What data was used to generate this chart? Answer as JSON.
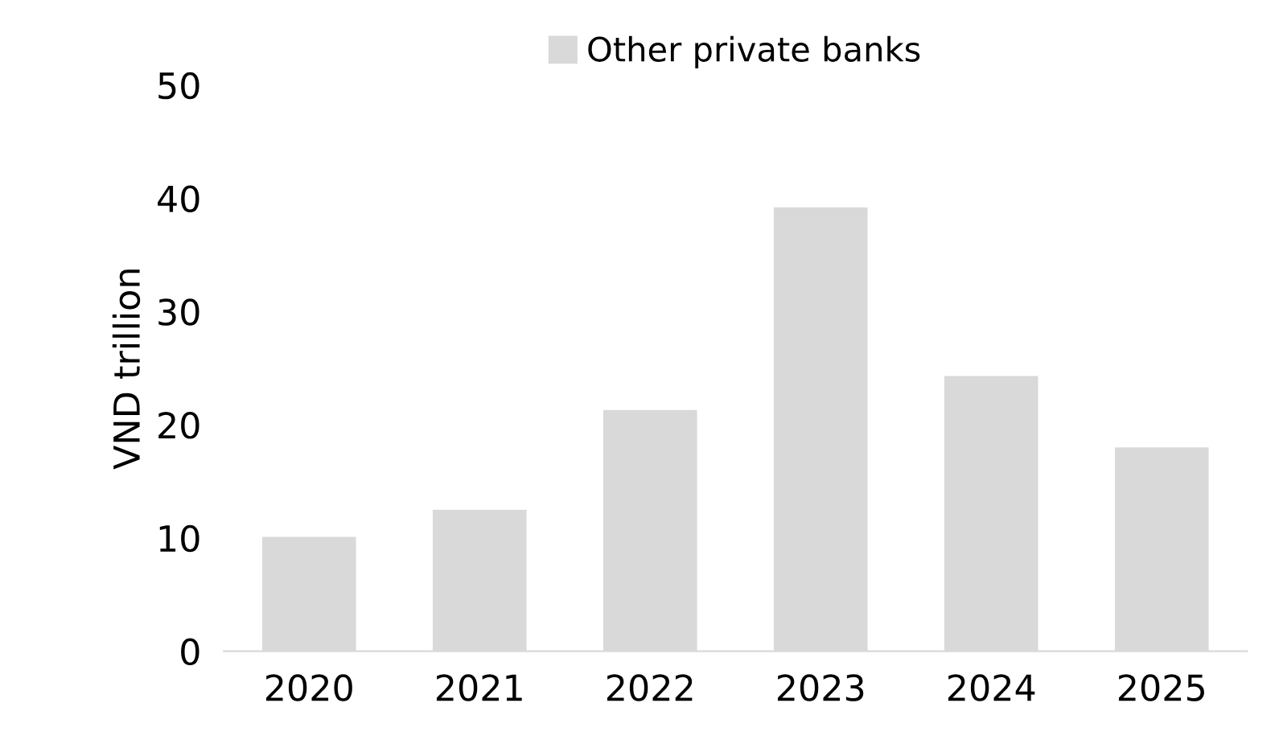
{
  "chart_data": {
    "type": "bar",
    "ylabel": "VND trillion",
    "categories": [
      "2020",
      "2021",
      "2022",
      "2023",
      "2024",
      "2025"
    ],
    "series": [
      {
        "name": "Other private banks",
        "color": "#d9d9d9",
        "values": [
          10.1,
          12.5,
          21.3,
          39.2,
          24.3,
          18.0
        ]
      }
    ],
    "ylim": [
      0,
      50
    ],
    "yticks": [
      0,
      10,
      20,
      30,
      40,
      50
    ],
    "grid": false,
    "legend": "top"
  }
}
